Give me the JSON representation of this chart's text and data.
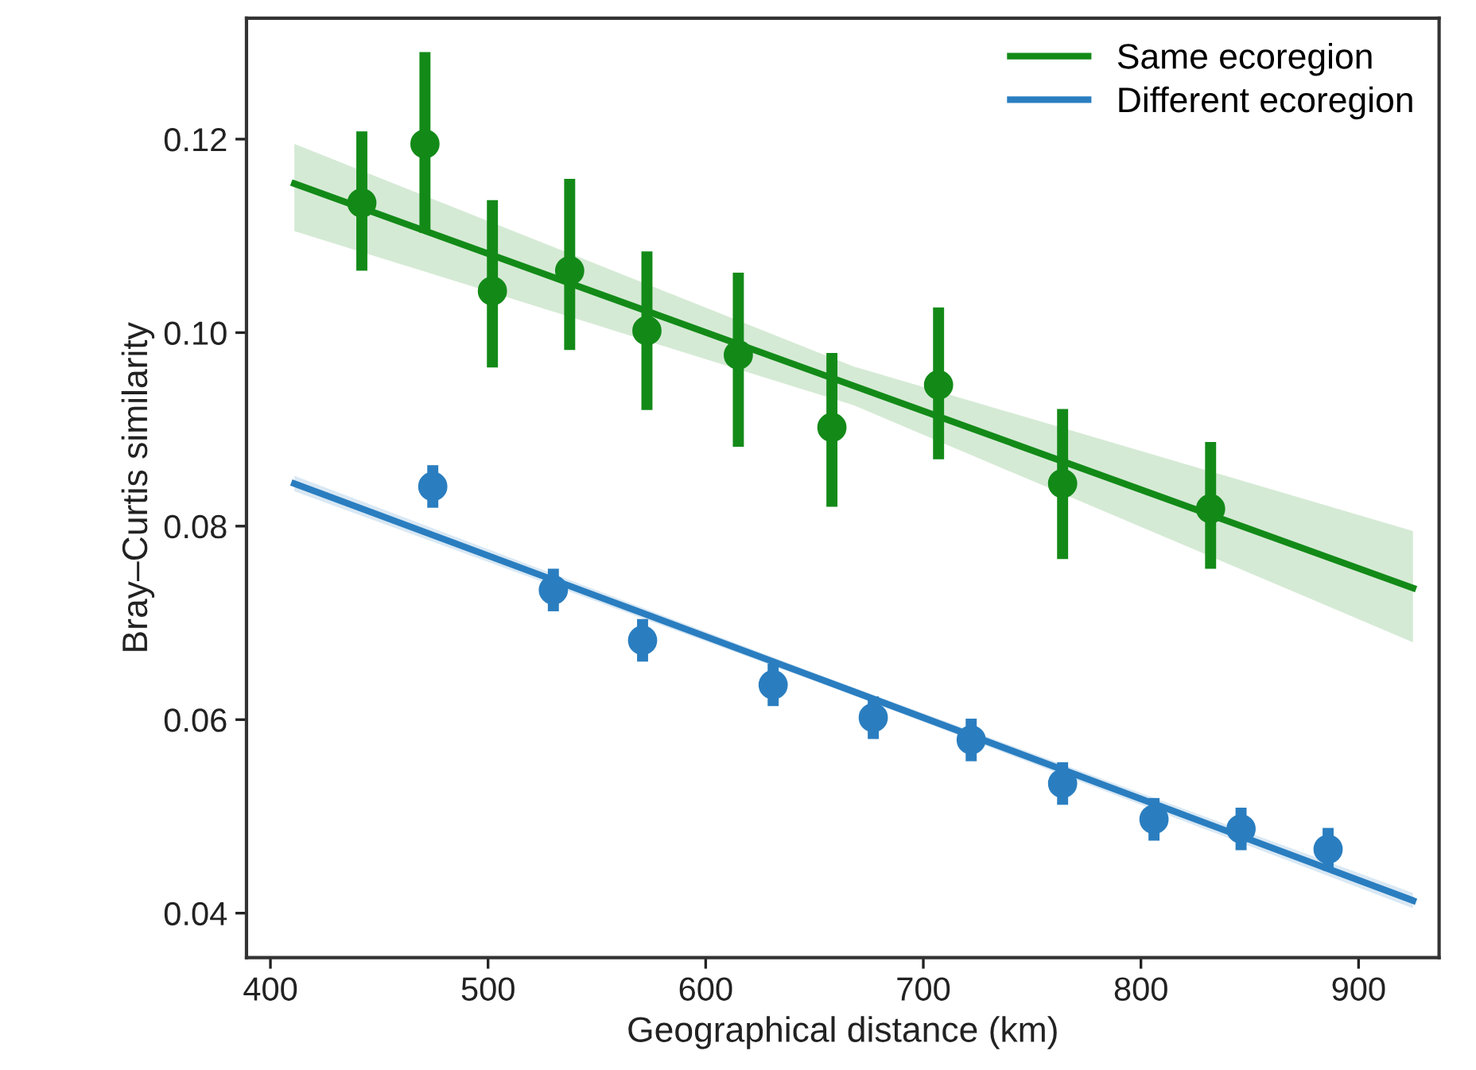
{
  "chart_data": {
    "type": "scatter",
    "xlabel": "Geographical distance (km)",
    "ylabel": "Bray–Curtis similarity",
    "xlim": [
      389,
      937
    ],
    "ylim": [
      0.0354,
      0.1325
    ],
    "xticks": [
      400,
      500,
      600,
      700,
      800,
      900
    ],
    "yticks": [
      0.04,
      0.06,
      0.08,
      {
        "value": 0.1,
        "label": "0.10"
      },
      0.12
    ],
    "grid": false,
    "legend": "top right",
    "series": [
      {
        "type": "line",
        "name": "Same ecoregion",
        "color": "#138a18",
        "marker": "none",
        "x": [
          411,
          668,
          925
        ],
        "values": [
          0.1154,
          0.0945,
          0.0736
        ],
        "lower": [
          0.1105,
          0.0925,
          0.068
        ],
        "upper": [
          0.1195,
          0.0965,
          0.0795
        ]
      },
      {
        "type": "line",
        "name": "Different ecoregion",
        "color": "#2a7ec0",
        "marker": "none",
        "x": [
          411,
          668,
          925
        ],
        "values": [
          0.0844,
          0.0629,
          0.0413
        ],
        "lower": [
          0.0836,
          0.0625,
          0.0405
        ],
        "upper": [
          0.0852,
          0.0633,
          0.0421
        ]
      },
      {
        "color": "#138a18",
        "marker": "circle",
        "x": [
          442,
          471,
          502,
          537.5,
          573,
          615,
          658,
          707,
          764,
          832
        ],
        "values": [
          0.1134,
          0.1195,
          0.1043,
          0.1064,
          0.1002,
          0.0977,
          0.0902,
          0.0946,
          0.0844,
          0.0818
        ],
        "errors": [
          [
            0.1064,
            0.1208
          ],
          [
            0.1103,
            0.129
          ],
          [
            0.0964,
            0.1137
          ],
          [
            0.0982,
            0.1159
          ],
          [
            0.092,
            0.1084
          ],
          [
            0.0882,
            0.1062
          ],
          [
            0.082,
            0.0979
          ],
          [
            0.0869,
            0.1026
          ],
          [
            0.0766,
            0.0921
          ],
          [
            0.0756,
            0.0887
          ]
        ]
      },
      {
        "color": "#2a7ec0",
        "marker": "circle",
        "x": [
          474.6,
          530,
          571,
          631,
          677,
          722,
          764,
          806,
          846,
          886
        ],
        "values": [
          0.0841,
          0.0734,
          0.0682,
          0.0636,
          0.0602,
          0.0579,
          0.0534,
          0.0497,
          0.0487,
          0.0466
        ],
        "errors": [
          0.0022,
          0.0022,
          0.0022,
          0.0022,
          0.0022,
          0.0022,
          0.0022,
          0.0022,
          0.0022,
          0.0022
        ]
      }
    ]
  }
}
